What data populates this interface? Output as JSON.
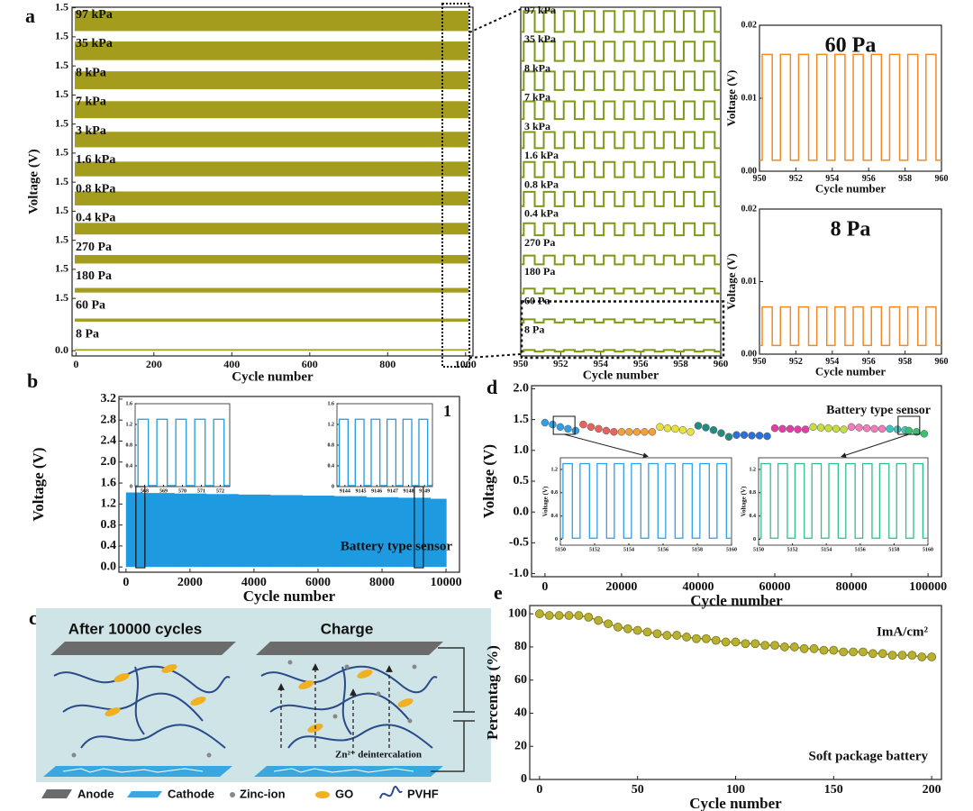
{
  "chart_data": [
    {
      "type": "offset-band",
      "panel": "a",
      "xlabel": "Cycle number",
      "ylabel": "Voltage (V)",
      "xlim": [
        -10,
        1019
      ],
      "xticks": [
        0,
        200,
        400,
        600,
        800,
        1000
      ],
      "color": "#a39c1c",
      "row_ticks": [
        1.5,
        1.5,
        1.5,
        1.5,
        1.5,
        1.5,
        1.5,
        1.5,
        1.5,
        1.5,
        1.5,
        {
          "value": 0,
          "label": "0.0"
        }
      ],
      "series": [
        {
          "name": "97 kPa",
          "amplitude": 1.3
        },
        {
          "name": "35 kPa",
          "amplitude": 1.2
        },
        {
          "name": "8 kPa",
          "amplitude": 1.15
        },
        {
          "name": "7 kPa",
          "amplitude": 1.1
        },
        {
          "name": "3 kPa",
          "amplitude": 1.0
        },
        {
          "name": "1.6 kPa",
          "amplitude": 0.95
        },
        {
          "name": "0.8 kPa",
          "amplitude": 0.9
        },
        {
          "name": "0.4 kPa",
          "amplitude": 0.75
        },
        {
          "name": "270 Pa",
          "amplitude": 0.55
        },
        {
          "name": "180 Pa",
          "amplitude": 0.3
        },
        {
          "name": "60 Pa",
          "amplitude": 0.2
        },
        {
          "name": "8 Pa",
          "amplitude": 0.1
        }
      ]
    },
    {
      "type": "offset-wave",
      "xlabel": "Cycle number",
      "xlim": [
        950,
        960
      ],
      "xticks": [
        950,
        952,
        954,
        956,
        958,
        960
      ],
      "color": "#7c9a16",
      "period": 1,
      "series": [
        {
          "name": "97 kPa",
          "amplitude": 1.3
        },
        {
          "name": "35 kPa",
          "amplitude": 1.2
        },
        {
          "name": "8 kPa",
          "amplitude": 1.15
        },
        {
          "name": "7 kPa",
          "amplitude": 1.1
        },
        {
          "name": "3 kPa",
          "amplitude": 1.0
        },
        {
          "name": "1.6 kPa",
          "amplitude": 0.95
        },
        {
          "name": "0.8 kPa",
          "amplitude": 0.9
        },
        {
          "name": "0.4 kPa",
          "amplitude": 0.75
        },
        {
          "name": "270 Pa",
          "amplitude": 0.55
        },
        {
          "name": "180 Pa",
          "amplitude": 0.3
        },
        {
          "name": "60 Pa",
          "amplitude": 0.2
        },
        {
          "name": "8 Pa",
          "amplitude": 0.1
        }
      ]
    },
    {
      "type": "square-wave",
      "title": "60 Pa",
      "xlabel": "Cycle number",
      "ylabel": "Voltage (V)",
      "xlim": [
        950,
        960
      ],
      "xticks": [
        950,
        952,
        954,
        956,
        958,
        960
      ],
      "ylim": [
        0,
        0.02
      ],
      "yticks": [
        {
          "value": 0,
          "label": "0.00"
        },
        0.01,
        0.02
      ],
      "color": "#f08a24",
      "high": 0.016,
      "low": 0.0015,
      "period": 1
    },
    {
      "type": "square-wave",
      "title": "8 Pa",
      "xlabel": "Cycle number",
      "ylabel": "Voltage (V)",
      "xlim": [
        950,
        960
      ],
      "xticks": [
        950,
        952,
        954,
        956,
        958,
        960
      ],
      "ylim": [
        0,
        0.02
      ],
      "yticks": [
        {
          "value": 0,
          "label": "0.00"
        },
        0.01,
        0.02
      ],
      "color": "#f08a24",
      "high": 0.0065,
      "low": 0.0012,
      "period": 1
    },
    {
      "type": "area",
      "panel": "b",
      "xlabel": "Cycle number",
      "ylabel": "Voltage (V)",
      "annotation": "Battery type sensor",
      "corner_label": "1",
      "xlim": [
        -220,
        10420
      ],
      "xticks": [
        0,
        2000,
        4000,
        6000,
        8000,
        10000
      ],
      "ylim": [
        -0.1,
        3.25
      ],
      "yticks": [
        {
          "value": 0,
          "label": "0.0"
        },
        0.4,
        0.8,
        1.2,
        1.6,
        {
          "value": 2,
          "label": "2.0"
        },
        2.4,
        2.8,
        3.2
      ],
      "color": "#1e9be0",
      "x": [
        0,
        1000,
        2000,
        3000,
        4000,
        5000,
        6000,
        7000,
        8000,
        9000,
        10000
      ],
      "values": [
        1.42,
        1.41,
        1.4,
        1.39,
        1.38,
        1.37,
        1.36,
        1.35,
        1.33,
        1.32,
        1.3
      ],
      "insets": [
        {
          "marker_x": 450,
          "xlim": [
            567.5,
            572.5
          ],
          "xticks": [
            568,
            569,
            570,
            571,
            572
          ],
          "ylim": [
            0,
            1.6
          ],
          "yticks": [
            0,
            0.4,
            0.8,
            1.2,
            1.6
          ],
          "color": "#1e9be0",
          "high": 1.3,
          "low": 0.02,
          "period": 1
        },
        {
          "marker_x": 9150,
          "xlim": [
            9143.5,
            9149.5
          ],
          "xticks": [
            9144,
            9145,
            9146,
            9147,
            9148,
            9149
          ],
          "ylim": [
            0,
            1.6
          ],
          "yticks": [
            0,
            0.4,
            0.8,
            1.2,
            1.6
          ],
          "color": "#1e9be0",
          "high": 1.3,
          "low": 0.02,
          "period": 1
        }
      ]
    },
    {
      "type": "dot-segments",
      "panel": "d",
      "xlabel": "Cycle number",
      "ylabel": "Voltage (V)",
      "annotation": "Battery type sensor",
      "xlim": [
        -3500,
        103500
      ],
      "xticks": [
        0,
        20000,
        40000,
        60000,
        80000,
        100000
      ],
      "ylim": [
        -1.05,
        2.05
      ],
      "yticks": [
        {
          "value": -1,
          "label": "-1.0"
        },
        -0.5,
        {
          "value": 0,
          "label": "0.0"
        },
        0.5,
        {
          "value": 1,
          "label": "1.0"
        },
        1.5,
        {
          "value": 2,
          "label": "2.0"
        }
      ],
      "series": [
        {
          "color": "#2f9fe6",
          "x": [
            0,
            2000,
            4000,
            6000,
            8000
          ],
          "values": [
            1.45,
            1.42,
            1.38,
            1.35,
            1.32
          ]
        },
        {
          "color": "#e8625c",
          "x": [
            10000,
            12000,
            14000,
            16000,
            18000
          ],
          "values": [
            1.42,
            1.38,
            1.35,
            1.32,
            1.3
          ]
        },
        {
          "color": "#f2a03a",
          "x": [
            20000,
            22000,
            24000,
            26000,
            28000
          ],
          "values": [
            1.3,
            1.3,
            1.3,
            1.3,
            1.3
          ]
        },
        {
          "color": "#e8e23a",
          "x": [
            30000,
            32000,
            34000,
            36000,
            38000
          ],
          "values": [
            1.38,
            1.36,
            1.35,
            1.33,
            1.3
          ]
        },
        {
          "color": "#238c80",
          "x": [
            40000,
            42000,
            44000,
            46000,
            48000
          ],
          "values": [
            1.4,
            1.37,
            1.33,
            1.28,
            1.22
          ]
        },
        {
          "color": "#2e6fd6",
          "x": [
            50000,
            52000,
            54000,
            56000,
            58000
          ],
          "values": [
            1.25,
            1.25,
            1.24,
            1.24,
            1.23
          ]
        },
        {
          "color": "#e23fa4",
          "x": [
            60000,
            62000,
            64000,
            66000,
            68000
          ],
          "values": [
            1.36,
            1.35,
            1.35,
            1.34,
            1.34
          ]
        },
        {
          "color": "#c6dd3e",
          "x": [
            70000,
            72000,
            74000,
            76000,
            78000
          ],
          "values": [
            1.38,
            1.37,
            1.36,
            1.35,
            1.34
          ]
        },
        {
          "color": "#f07fb8",
          "x": [
            80000,
            82000,
            84000,
            86000,
            88000
          ],
          "values": [
            1.38,
            1.37,
            1.36,
            1.35,
            1.35
          ]
        },
        {
          "color": "#3cc7c0",
          "x": [
            90000,
            92000,
            94000
          ],
          "values": [
            1.35,
            1.34,
            1.33
          ]
        },
        {
          "color": "#3ac070",
          "x": [
            95000,
            97000,
            99000
          ],
          "values": [
            1.32,
            1.3,
            1.27
          ]
        }
      ],
      "insets": [
        {
          "marker_x": 5000,
          "ylabel": "Voltage (V)",
          "xlim": [
            5150,
            5160
          ],
          "xticks": [
            5150,
            5152,
            5154,
            5156,
            5158,
            5160
          ],
          "ylim": [
            -0.1,
            1.4
          ],
          "yticks": [
            0,
            0.4,
            0.8,
            1.2
          ],
          "color": "#2f9fe6",
          "high": 1.3,
          "low": 0.02,
          "period": 1
        },
        {
          "marker_x": 95000,
          "ylabel": "Voltage (V)",
          "xlim": [
            5150,
            5160
          ],
          "xticks": [
            5150,
            5152,
            5154,
            5156,
            5158,
            5160
          ],
          "ylim": [
            -0.1,
            1.4
          ],
          "yticks": [
            0,
            0.4,
            0.8,
            1.2
          ],
          "color": "#2fbf8a",
          "high": 1.3,
          "low": 0.02,
          "period": 1
        }
      ]
    },
    {
      "type": "scatter-line",
      "panel": "e",
      "xlabel": "Cycle number",
      "ylabel": "Percentag (%)",
      "annotation": "ImA/cm²",
      "note": "Soft package battery",
      "xlim": [
        -5,
        205
      ],
      "xticks": [
        0,
        50,
        100,
        150,
        200
      ],
      "ylim": [
        0,
        105
      ],
      "yticks": [
        0,
        20,
        40,
        60,
        80,
        100
      ],
      "color": "#b8b030",
      "x": [
        0,
        5,
        10,
        15,
        20,
        25,
        30,
        35,
        40,
        45,
        50,
        55,
        60,
        65,
        70,
        75,
        80,
        85,
        90,
        95,
        100,
        105,
        110,
        115,
        120,
        125,
        130,
        135,
        140,
        145,
        150,
        155,
        160,
        165,
        170,
        175,
        180,
        185,
        190,
        195,
        200
      ],
      "values": [
        100,
        99,
        99,
        99,
        99,
        98,
        96,
        94,
        92,
        91,
        90,
        89,
        88,
        87,
        87,
        86,
        85,
        85,
        84,
        83,
        83,
        82,
        82,
        81,
        81,
        80,
        80,
        79,
        79,
        78,
        78,
        77,
        77,
        77,
        76,
        76,
        75,
        75,
        75,
        74,
        74
      ]
    }
  ],
  "diagram": {
    "panel": "c",
    "titles": [
      "After 10000 cycles",
      "Charge"
    ],
    "note": "Zn²⁺ deintercalation",
    "legend": [
      "Anode",
      "Cathode",
      "Zinc-ion",
      "GO",
      "PVHF"
    ]
  }
}
